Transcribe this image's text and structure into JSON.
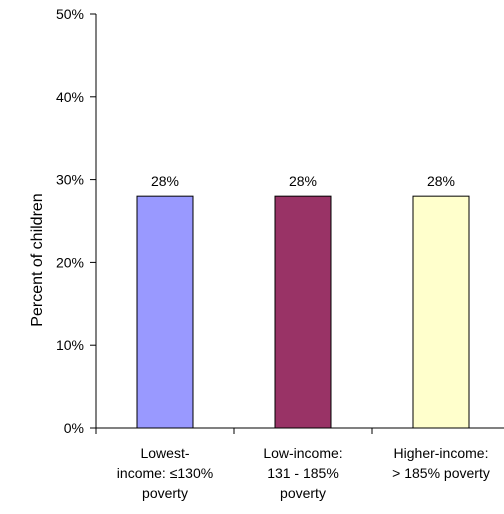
{
  "chart_data": {
    "type": "bar",
    "title": "",
    "xlabel": "",
    "ylabel": "Percent of children",
    "ylim": [
      0,
      50
    ],
    "yticks": [
      "0%",
      "10%",
      "20%",
      "30%",
      "40%",
      "50%"
    ],
    "categories": [
      [
        "Lowest-",
        "income: ≤130%",
        "poverty"
      ],
      [
        "Low-income:",
        "131 - 185%",
        "poverty"
      ],
      [
        "Higher-income:",
        "> 185% poverty"
      ]
    ],
    "values": [
      28,
      28,
      28
    ],
    "data_labels": [
      "28%",
      "28%",
      "28%"
    ],
    "bar_colors": [
      "#9999ff",
      "#993366",
      "#ffffcc"
    ],
    "grid": false,
    "legend": "none"
  }
}
